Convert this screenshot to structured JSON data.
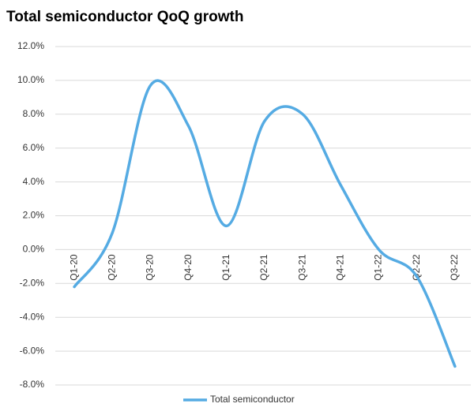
{
  "chart_data": {
    "type": "line",
    "title": "Total semiconductor QoQ growth",
    "categories": [
      "Q1-20",
      "Q2-20",
      "Q3-20",
      "Q4-20",
      "Q1-21",
      "Q2-21",
      "Q3-21",
      "Q4-21",
      "Q1-22",
      "Q2-22",
      "Q3-22"
    ],
    "series": [
      {
        "name": "Total semiconductor",
        "color": "#55abe3",
        "values": [
          -2.2,
          1.0,
          9.7,
          7.3,
          1.4,
          7.6,
          8.0,
          3.8,
          0.0,
          -1.6,
          -6.9
        ]
      }
    ],
    "ylim": [
      -8,
      12
    ],
    "yticks": [
      {
        "value": -8,
        "label": "-8.0%"
      },
      {
        "value": -6,
        "label": "-6.0%"
      },
      {
        "value": -4,
        "label": "-4.0%"
      },
      {
        "value": -2,
        "label": "-2.0%"
      },
      {
        "value": 0,
        "label": "0.0%"
      },
      {
        "value": 2,
        "label": "2.0%"
      },
      {
        "value": 4,
        "label": "4.0%"
      },
      {
        "value": 6,
        "label": "6.0%"
      },
      {
        "value": 8,
        "label": "8.0%"
      },
      {
        "value": 10,
        "label": "10.0%"
      },
      {
        "value": 12,
        "label": "12.0%"
      }
    ],
    "grid": true,
    "smooth": true,
    "legend": "bottom"
  }
}
